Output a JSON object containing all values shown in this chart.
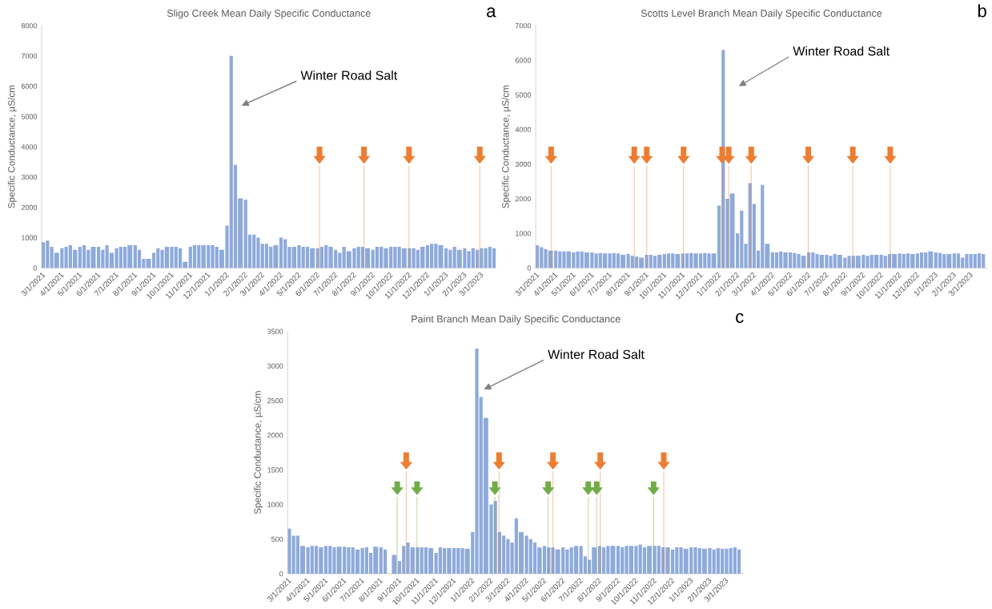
{
  "chart_data": [
    {
      "type": "bar",
      "title": "Sligo Creek Mean Daily Specific Conductance",
      "ylabel": "Specific Conductance, µS/cm",
      "x": [
        "2021-03-01",
        "2021-03-08",
        "2021-03-15",
        "2021-03-22",
        "2021-04-01",
        "2021-04-08",
        "2021-04-15",
        "2021-04-22",
        "2021-05-01",
        "2021-05-08",
        "2021-05-15",
        "2021-05-22",
        "2021-06-01",
        "2021-06-08",
        "2021-06-15",
        "2021-06-22",
        "2021-07-01",
        "2021-07-08",
        "2021-07-15",
        "2021-07-22",
        "2021-08-01",
        "2021-08-08",
        "2021-08-15",
        "2021-08-22",
        "2021-09-01",
        "2021-09-08",
        "2021-09-15",
        "2021-09-22",
        "2021-10-01",
        "2021-10-08",
        "2021-10-15",
        "2021-10-22",
        "2021-11-01",
        "2021-11-08",
        "2021-11-15",
        "2021-11-22",
        "2021-12-01",
        "2021-12-08",
        "2021-12-15",
        "2021-12-22",
        "2022-01-01",
        "2022-01-08",
        "2022-01-15",
        "2022-01-22",
        "2022-02-01",
        "2022-02-08",
        "2022-02-15",
        "2022-02-22",
        "2022-03-01",
        "2022-03-08",
        "2022-03-15",
        "2022-03-22",
        "2022-04-01",
        "2022-04-08",
        "2022-04-15",
        "2022-04-22",
        "2022-05-01",
        "2022-05-08",
        "2022-05-15",
        "2022-05-22",
        "2022-06-01",
        "2022-06-08",
        "2022-06-15",
        "2022-06-22",
        "2022-07-01",
        "2022-07-08",
        "2022-07-15",
        "2022-07-22",
        "2022-08-01",
        "2022-08-08",
        "2022-08-15",
        "2022-08-22",
        "2022-09-01",
        "2022-09-08",
        "2022-09-15",
        "2022-09-22",
        "2022-10-01",
        "2022-10-08",
        "2022-10-15",
        "2022-10-22",
        "2022-11-01",
        "2022-11-08",
        "2022-11-15",
        "2022-11-22",
        "2022-12-01",
        "2022-12-08",
        "2022-12-15",
        "2022-12-22",
        "2023-01-01",
        "2023-01-08",
        "2023-01-15",
        "2023-01-22",
        "2023-02-01",
        "2023-02-08",
        "2023-02-15",
        "2023-02-22",
        "2023-03-01",
        "2023-03-08",
        "2023-03-15",
        "2023-03-22"
      ],
      "series": [
        {
          "color": "#8eaadb",
          "values": [
            850,
            900,
            700,
            500,
            650,
            700,
            750,
            600,
            700,
            750,
            600,
            700,
            700,
            600,
            750,
            500,
            650,
            700,
            700,
            750,
            750,
            600,
            300,
            300,
            500,
            650,
            600,
            700,
            700,
            700,
            650,
            200,
            700,
            750,
            750,
            750,
            750,
            750,
            700,
            600,
            1400,
            7000,
            3400,
            2300,
            2250,
            1100,
            1100,
            1000,
            800,
            800,
            700,
            750,
            1000,
            950,
            700,
            700,
            750,
            700,
            700,
            650,
            650,
            700,
            750,
            700,
            600,
            500,
            700,
            550,
            650,
            700,
            700,
            650,
            600,
            700,
            700,
            650,
            700,
            700,
            700,
            650,
            650,
            650,
            600,
            700,
            750,
            800,
            800,
            750,
            650,
            600,
            700,
            600,
            650,
            550,
            650,
            600,
            650,
            650,
            700,
            650
          ]
        }
      ],
      "xlim": [
        "2021-03-01",
        "2023-03-28"
      ],
      "xticks": [
        {
          "value": "2021-03-01",
          "label": "3/1/2021"
        },
        {
          "value": "2021-04-01",
          "label": "4/1/2021"
        },
        {
          "value": "2021-05-01",
          "label": "5/1/2021"
        },
        {
          "value": "2021-06-01",
          "label": "6/1/2021"
        },
        {
          "value": "2021-07-01",
          "label": "7/1/2021"
        },
        {
          "value": "2021-08-01",
          "label": "8/1/2021"
        },
        {
          "value": "2021-09-01",
          "label": "9/1/2021"
        },
        {
          "value": "2021-10-01",
          "label": "10/1/2021"
        },
        {
          "value": "2021-11-01",
          "label": "11/1/2021"
        },
        {
          "value": "2021-12-01",
          "label": "12/1/2021"
        },
        {
          "value": "2022-01-01",
          "label": "1/1/2022"
        },
        {
          "value": "2022-02-01",
          "label": "2/1/2022"
        },
        {
          "value": "2022-03-01",
          "label": "3/1/2022"
        },
        {
          "value": "2022-04-01",
          "label": "4/1/2022"
        },
        {
          "value": "2022-05-01",
          "label": "5/1/2022"
        },
        {
          "value": "2022-06-01",
          "label": "6/1/2022"
        },
        {
          "value": "2022-07-01",
          "label": "7/1/2022"
        },
        {
          "value": "2022-08-01",
          "label": "8/1/2022"
        },
        {
          "value": "2022-09-01",
          "label": "9/1/2022"
        },
        {
          "value": "2022-10-01",
          "label": "10/1/2022"
        },
        {
          "value": "2022-11-01",
          "label": "11/1/2022"
        },
        {
          "value": "2022-12-01",
          "label": "12/1/2022"
        },
        {
          "value": "2023-01-01",
          "label": "1/1/2023"
        },
        {
          "value": "2023-02-01",
          "label": "2/1/2023"
        },
        {
          "value": "2023-03-01",
          "label": "3/1/2023"
        }
      ],
      "ylim": [
        0,
        8000
      ],
      "yticks": [
        0,
        1000,
        2000,
        3000,
        4000,
        5000,
        6000,
        7000,
        8000
      ],
      "ref_lines": [
        {
          "axis": "x",
          "value": "2022-06-07",
          "color": "#ed7d31"
        },
        {
          "axis": "x",
          "value": "2022-08-20",
          "color": "#ed7d31"
        },
        {
          "axis": "x",
          "value": "2022-11-03",
          "color": "#ed7d31"
        },
        {
          "axis": "x",
          "value": "2023-03-01",
          "color": "#ed7d31"
        }
      ],
      "annotations": [
        "a",
        "Winter Road Salt"
      ]
    },
    {
      "type": "bar",
      "title": "Scotts Level Branch Mean Daily Specific Conductance",
      "ylabel": "Specific Conductance, µS/cm",
      "x": [
        "2021-03-01",
        "2021-03-08",
        "2021-03-15",
        "2021-03-22",
        "2021-04-01",
        "2021-04-08",
        "2021-04-15",
        "2021-04-22",
        "2021-05-01",
        "2021-05-08",
        "2021-05-15",
        "2021-05-22",
        "2021-06-01",
        "2021-06-08",
        "2021-06-15",
        "2021-06-22",
        "2021-07-01",
        "2021-07-08",
        "2021-07-15",
        "2021-07-22",
        "2021-08-01",
        "2021-08-08",
        "2021-08-15",
        "2021-08-22",
        "2021-09-01",
        "2021-09-08",
        "2021-09-15",
        "2021-09-22",
        "2021-10-01",
        "2021-10-08",
        "2021-10-15",
        "2021-10-22",
        "2021-11-01",
        "2021-11-08",
        "2021-11-15",
        "2021-11-22",
        "2021-12-01",
        "2021-12-08",
        "2021-12-15",
        "2021-12-22",
        "2022-01-01",
        "2022-01-08",
        "2022-01-15",
        "2022-01-22",
        "2022-02-01",
        "2022-02-08",
        "2022-02-15",
        "2022-02-22",
        "2022-03-01",
        "2022-03-08",
        "2022-03-15",
        "2022-03-22",
        "2022-04-01",
        "2022-04-08",
        "2022-04-15",
        "2022-04-22",
        "2022-05-01",
        "2022-05-08",
        "2022-05-15",
        "2022-05-22",
        "2022-06-01",
        "2022-06-08",
        "2022-06-15",
        "2022-06-22",
        "2022-07-01",
        "2022-07-08",
        "2022-07-15",
        "2022-07-22",
        "2022-08-01",
        "2022-08-08",
        "2022-08-15",
        "2022-08-22",
        "2022-09-01",
        "2022-09-08",
        "2022-09-15",
        "2022-09-22",
        "2022-10-01",
        "2022-10-08",
        "2022-10-15",
        "2022-10-22",
        "2022-11-01",
        "2022-11-08",
        "2022-11-15",
        "2022-11-22",
        "2022-12-01",
        "2022-12-08",
        "2022-12-15",
        "2022-12-22",
        "2023-01-01",
        "2023-01-08",
        "2023-01-15",
        "2023-01-22",
        "2023-02-01",
        "2023-02-08",
        "2023-02-15",
        "2023-02-22",
        "2023-03-01",
        "2023-03-08",
        "2023-03-15",
        "2023-03-22"
      ],
      "series": [
        {
          "color": "#8eaadb",
          "values": [
            650,
            600,
            550,
            500,
            500,
            480,
            480,
            480,
            450,
            480,
            470,
            450,
            450,
            420,
            430,
            420,
            420,
            430,
            420,
            380,
            400,
            350,
            330,
            300,
            380,
            380,
            350,
            380,
            400,
            420,
            420,
            400,
            420,
            420,
            430,
            420,
            420,
            430,
            420,
            420,
            1800,
            6300,
            2000,
            2150,
            1000,
            1650,
            700,
            2450,
            1850,
            500,
            2400,
            700,
            450,
            450,
            480,
            450,
            450,
            430,
            400,
            350,
            450,
            450,
            400,
            380,
            380,
            350,
            400,
            380,
            300,
            350,
            350,
            350,
            380,
            350,
            380,
            380,
            380,
            350,
            400,
            400,
            420,
            400,
            420,
            400,
            420,
            450,
            450,
            480,
            450,
            430,
            400,
            400,
            420,
            420,
            300,
            400,
            400,
            400,
            420,
            400
          ]
        }
      ],
      "xlim": [
        "2021-03-01",
        "2023-03-31"
      ],
      "xticks": [
        {
          "value": "2021-03-01",
          "label": "3/1/2021"
        },
        {
          "value": "2021-04-01",
          "label": "4/1/2021"
        },
        {
          "value": "2021-05-01",
          "label": "5/1/2021"
        },
        {
          "value": "2021-06-01",
          "label": "6/1/2021"
        },
        {
          "value": "2021-07-01",
          "label": "7/1/2021"
        },
        {
          "value": "2021-08-01",
          "label": "8/1/2021"
        },
        {
          "value": "2021-09-01",
          "label": "9/1/2021"
        },
        {
          "value": "2021-10-01",
          "label": "10/1/2021"
        },
        {
          "value": "2021-11-01",
          "label": "11/1/2021"
        },
        {
          "value": "2021-12-01",
          "label": "12/1/2021"
        },
        {
          "value": "2022-01-01",
          "label": "1/1/2022"
        },
        {
          "value": "2022-02-01",
          "label": "2/1/2022"
        },
        {
          "value": "2022-03-01",
          "label": "3/1/2022"
        },
        {
          "value": "2022-04-01",
          "label": "4/1/2022"
        },
        {
          "value": "2022-05-01",
          "label": "5/1/2022"
        },
        {
          "value": "2022-06-01",
          "label": "6/1/2022"
        },
        {
          "value": "2022-07-01",
          "label": "7/1/2022"
        },
        {
          "value": "2022-08-01",
          "label": "8/1/2022"
        },
        {
          "value": "2022-09-01",
          "label": "9/1/2022"
        },
        {
          "value": "2022-10-01",
          "label": "10/1/2022"
        },
        {
          "value": "2022-11-01",
          "label": "11/1/2022"
        },
        {
          "value": "2022-12-01",
          "label": "12/1/2022"
        },
        {
          "value": "2023-01-01",
          "label": "1/1/2023"
        },
        {
          "value": "2023-02-01",
          "label": "2/1/2023"
        },
        {
          "value": "2023-03-01",
          "label": "3/1/2023"
        }
      ],
      "ylim": [
        0,
        7000
      ],
      "yticks": [
        0,
        1000,
        2000,
        3000,
        4000,
        5000,
        6000,
        7000
      ],
      "ref_lines": [
        {
          "axis": "x",
          "value": "2021-03-27",
          "color": "#ed7d31"
        },
        {
          "axis": "x",
          "value": "2021-08-14",
          "color": "#ed7d31"
        },
        {
          "axis": "x",
          "value": "2021-09-04",
          "color": "#ed7d31"
        },
        {
          "axis": "x",
          "value": "2021-11-05",
          "color": "#ed7d31"
        },
        {
          "axis": "x",
          "value": "2022-01-09",
          "color": "#ed7d31"
        },
        {
          "axis": "x",
          "value": "2022-01-20",
          "color": "#ed7d31"
        },
        {
          "axis": "x",
          "value": "2022-02-27",
          "color": "#ed7d31"
        },
        {
          "axis": "x",
          "value": "2022-06-03",
          "color": "#ed7d31"
        },
        {
          "axis": "x",
          "value": "2022-08-17",
          "color": "#ed7d31"
        },
        {
          "axis": "x",
          "value": "2022-10-19",
          "color": "#ed7d31"
        }
      ],
      "annotations": [
        "b",
        "Winter Road Salt"
      ]
    },
    {
      "type": "bar",
      "title": "Paint Branch Mean Daily Specific Conductance",
      "ylabel": "Specific Conductance, µS/cm",
      "x": [
        "2021-03-01",
        "2021-03-08",
        "2021-03-15",
        "2021-03-22",
        "2021-04-01",
        "2021-04-08",
        "2021-04-15",
        "2021-04-22",
        "2021-05-01",
        "2021-05-08",
        "2021-05-15",
        "2021-05-22",
        "2021-06-01",
        "2021-06-08",
        "2021-06-15",
        "2021-06-22",
        "2021-07-01",
        "2021-07-08",
        "2021-07-15",
        "2021-07-22",
        "2021-08-01",
        "2021-08-08",
        "2021-08-15",
        "2021-08-22",
        "2021-09-01",
        "2021-09-08",
        "2021-09-15",
        "2021-09-22",
        "2021-10-01",
        "2021-10-08",
        "2021-10-15",
        "2021-10-22",
        "2021-11-01",
        "2021-11-08",
        "2021-11-15",
        "2021-11-22",
        "2021-12-01",
        "2021-12-08",
        "2021-12-15",
        "2021-12-22",
        "2022-01-01",
        "2022-01-08",
        "2022-01-15",
        "2022-01-22",
        "2022-02-01",
        "2022-02-08",
        "2022-02-15",
        "2022-02-22",
        "2022-03-01",
        "2022-03-08",
        "2022-03-15",
        "2022-03-22",
        "2022-04-01",
        "2022-04-08",
        "2022-04-15",
        "2022-04-22",
        "2022-05-01",
        "2022-05-08",
        "2022-05-15",
        "2022-05-22",
        "2022-06-01",
        "2022-06-08",
        "2022-06-15",
        "2022-06-22",
        "2022-07-01",
        "2022-07-08",
        "2022-07-15",
        "2022-07-22",
        "2022-08-01",
        "2022-08-08",
        "2022-08-15",
        "2022-08-22",
        "2022-09-01",
        "2022-09-08",
        "2022-09-15",
        "2022-09-22",
        "2022-10-01",
        "2022-10-08",
        "2022-10-15",
        "2022-10-22",
        "2022-11-01",
        "2022-11-08",
        "2022-11-15",
        "2022-11-22",
        "2022-12-01",
        "2022-12-08",
        "2022-12-15",
        "2022-12-22",
        "2023-01-01",
        "2023-01-08",
        "2023-01-15",
        "2023-01-22",
        "2023-02-01",
        "2023-02-08",
        "2023-02-15",
        "2023-02-22",
        "2023-03-01",
        "2023-03-08",
        "2023-03-15",
        "2023-03-22"
      ],
      "series": [
        {
          "color": "#8eaadb",
          "values": [
            650,
            550,
            550,
            400,
            380,
            400,
            400,
            380,
            400,
            400,
            380,
            390,
            390,
            380,
            380,
            350,
            370,
            380,
            300,
            390,
            380,
            350,
            null,
            270,
            180,
            400,
            450,
            380,
            380,
            380,
            380,
            370,
            300,
            380,
            370,
            370,
            370,
            370,
            370,
            360,
            600,
            3250,
            2550,
            2250,
            1000,
            1050,
            600,
            550,
            500,
            450,
            800,
            600,
            550,
            500,
            450,
            380,
            400,
            380,
            380,
            350,
            380,
            350,
            380,
            400,
            400,
            250,
            200,
            380,
            400,
            380,
            400,
            400,
            400,
            380,
            400,
            400,
            400,
            420,
            380,
            400,
            400,
            400,
            380,
            380,
            350,
            380,
            380,
            360,
            380,
            380,
            370,
            360,
            370,
            350,
            370,
            360,
            360,
            370,
            380,
            350
          ]
        }
      ],
      "xlim": [
        "2021-03-01",
        "2023-04-02"
      ],
      "xticks": [
        {
          "value": "2021-03-01",
          "label": "3/1/2021"
        },
        {
          "value": "2021-04-01",
          "label": "4/1/2021"
        },
        {
          "value": "2021-05-01",
          "label": "5/1/2021"
        },
        {
          "value": "2021-06-01",
          "label": "6/1/2021"
        },
        {
          "value": "2021-07-01",
          "label": "7/1/2021"
        },
        {
          "value": "2021-08-01",
          "label": "8/1/2021"
        },
        {
          "value": "2021-09-01",
          "label": "9/1/2021"
        },
        {
          "value": "2021-10-01",
          "label": "10/1/2021"
        },
        {
          "value": "2021-11-01",
          "label": "11/1/2021"
        },
        {
          "value": "2021-12-01",
          "label": "12/1/2021"
        },
        {
          "value": "2022-01-01",
          "label": "1/1/2022"
        },
        {
          "value": "2022-02-01",
          "label": "2/1/2022"
        },
        {
          "value": "2022-03-01",
          "label": "3/1/2022"
        },
        {
          "value": "2022-04-01",
          "label": "4/1/2022"
        },
        {
          "value": "2022-05-01",
          "label": "5/1/2022"
        },
        {
          "value": "2022-06-01",
          "label": "6/1/2022"
        },
        {
          "value": "2022-07-01",
          "label": "7/1/2022"
        },
        {
          "value": "2022-08-01",
          "label": "8/1/2022"
        },
        {
          "value": "2022-09-01",
          "label": "9/1/2022"
        },
        {
          "value": "2022-10-01",
          "label": "10/1/2022"
        },
        {
          "value": "2022-11-01",
          "label": "11/1/2022"
        },
        {
          "value": "2022-12-01",
          "label": "12/1/2022"
        },
        {
          "value": "2023-01-01",
          "label": "1/1/2023"
        },
        {
          "value": "2023-02-01",
          "label": "2/1/2023"
        },
        {
          "value": "2023-03-01",
          "label": "3/1/2023"
        }
      ],
      "ylim": [
        0,
        3500
      ],
      "yticks": [
        0,
        500,
        1000,
        1500,
        2000,
        2500,
        3000,
        3500
      ],
      "ref_lines": [
        {
          "axis": "x",
          "value": "2021-09-15",
          "color": "#ed7d31"
        },
        {
          "axis": "x",
          "value": "2022-02-17",
          "color": "#ed7d31"
        },
        {
          "axis": "x",
          "value": "2022-05-18",
          "color": "#ed7d31"
        },
        {
          "axis": "x",
          "value": "2022-08-05",
          "color": "#ed7d31"
        },
        {
          "axis": "x",
          "value": "2022-11-19",
          "color": "#ed7d31"
        },
        {
          "axis": "x",
          "value": "2021-08-31",
          "color": "#70ad47"
        },
        {
          "axis": "x",
          "value": "2021-10-03",
          "color": "#70ad47"
        },
        {
          "axis": "x",
          "value": "2022-02-10",
          "color": "#70ad47"
        },
        {
          "axis": "x",
          "value": "2022-05-10",
          "color": "#70ad47"
        },
        {
          "axis": "x",
          "value": "2022-07-16",
          "color": "#70ad47"
        },
        {
          "axis": "x",
          "value": "2022-07-30",
          "color": "#70ad47"
        },
        {
          "axis": "x",
          "value": "2022-11-02",
          "color": "#70ad47"
        }
      ],
      "annotations": [
        "c",
        "Winter Road Salt"
      ]
    }
  ]
}
